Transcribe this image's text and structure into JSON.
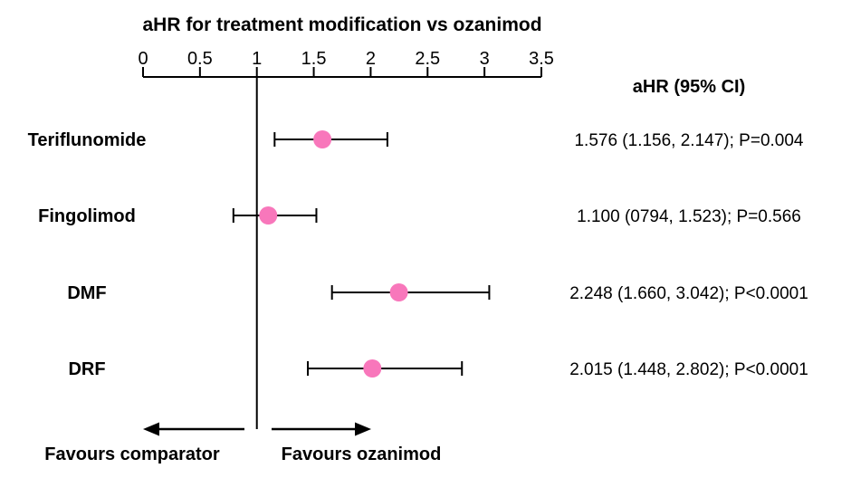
{
  "chart_data": {
    "type": "scatter",
    "variant": "forest-plot",
    "title": "aHR for treatment modification vs ozanimod",
    "value_column_header": "aHR (95% CI)",
    "axis": {
      "min": 0,
      "max": 3.5,
      "ticks": [
        0,
        0.5,
        1,
        1.5,
        2,
        2.5,
        3,
        3.5
      ],
      "tick_labels": [
        "0",
        "0.5",
        "1",
        "1.5",
        "2",
        "2.5",
        "3",
        "3.5"
      ],
      "reference_line": 1,
      "position": "top",
      "grid": "off"
    },
    "rows": [
      {
        "label": "Teriflunomide",
        "estimate": 1.576,
        "ci_low": 1.156,
        "ci_high": 2.147,
        "p_value": "P=0.004",
        "result_text": "1.576 (1.156, 2.147); P=0.004"
      },
      {
        "label": "Fingolimod",
        "estimate": 1.1,
        "ci_low": 0.794,
        "ci_high": 1.523,
        "p_value": "P=0.566",
        "result_text": "1.100 (0794, 1.523); P=0.566"
      },
      {
        "label": "DMF",
        "estimate": 2.248,
        "ci_low": 1.66,
        "ci_high": 3.042,
        "p_value": "P<0.0001",
        "result_text": "2.248 (1.660, 3.042); P<0.0001"
      },
      {
        "label": "DRF",
        "estimate": 2.015,
        "ci_low": 1.448,
        "ci_high": 2.802,
        "p_value": "P<0.0001",
        "result_text": "2.015 (1.448, 2.802); P<0.0001"
      }
    ],
    "footer": {
      "left_label": "Favours comparator",
      "right_label": "Favours ozanimod"
    },
    "colors": {
      "marker": "#F877BB",
      "line": "#000000",
      "text": "#000000",
      "background": "#ffffff"
    },
    "legend": "none"
  }
}
